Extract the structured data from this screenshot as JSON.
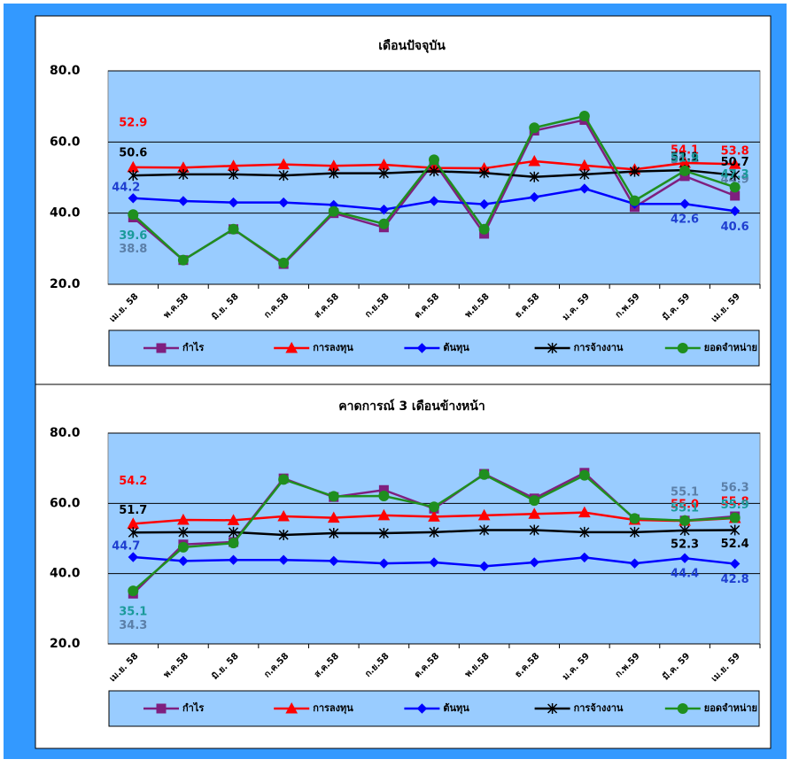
{
  "chart_data": [
    {
      "type": "line",
      "title": "เดือนปัจจุบัน",
      "categories": [
        "เม.ย. 58",
        "พ.ค.58",
        "มิ.ย. 58",
        "ก.ค.58",
        "ส.ค.58",
        "ก.ย.58",
        "ต.ค.58",
        "พ.ย.58",
        "ธ.ค.58",
        "ม.ค. 59",
        "ก.พ.59",
        "มี.ค. 59",
        "เม.ย. 59"
      ],
      "ylim": [
        20,
        80
      ],
      "yticks": [
        {
          "value": 20,
          "label": "20.0"
        },
        {
          "value": 40,
          "label": "40.0"
        },
        {
          "value": 60,
          "label": "60.0"
        },
        {
          "value": 80,
          "label": "80.0"
        }
      ],
      "grid": true,
      "plot_color": "#99ccff",
      "series": [
        {
          "name": "กำไร",
          "color": "#7f1f7f",
          "marker": "square",
          "label_color": "#5b7fa8",
          "values": [
            38.8,
            26.8,
            35.5,
            25.7,
            40.0,
            36.0,
            54.3,
            34.2,
            63.2,
            66.2,
            41.7,
            50.4,
            44.9
          ],
          "value_labels": [
            "38.8",
            null,
            null,
            null,
            null,
            null,
            null,
            null,
            null,
            null,
            null,
            "50.4",
            "44.9"
          ]
        },
        {
          "name": "การลงทุน",
          "color": "#ff0000",
          "marker": "triangle",
          "label_color": "#ff0000",
          "values": [
            52.9,
            52.8,
            53.3,
            53.7,
            53.3,
            53.6,
            52.7,
            52.6,
            54.6,
            53.4,
            52.3,
            54.1,
            53.8
          ],
          "value_labels": [
            "52.9",
            null,
            null,
            null,
            null,
            null,
            null,
            null,
            null,
            null,
            null,
            "54.1",
            "53.8"
          ]
        },
        {
          "name": "ต้นทุน",
          "color": "#0000ff",
          "marker": "diamond",
          "label_color": "#1f3fd0",
          "values": [
            44.2,
            43.4,
            43.0,
            43.0,
            42.3,
            41.0,
            43.4,
            42.5,
            44.5,
            46.9,
            42.6,
            42.6,
            40.6
          ],
          "value_labels": [
            "44.2",
            null,
            null,
            null,
            null,
            null,
            null,
            null,
            null,
            null,
            null,
            "42.6",
            "40.6"
          ]
        },
        {
          "name": "การจ้างงาน",
          "color": "#000000",
          "marker": "star",
          "label_color": "#000000",
          "values": [
            50.6,
            50.9,
            50.9,
            50.6,
            51.2,
            51.2,
            51.8,
            51.3,
            50.2,
            50.9,
            51.7,
            52.1,
            50.7
          ],
          "value_labels": [
            "50.6",
            null,
            null,
            null,
            null,
            null,
            null,
            null,
            null,
            null,
            null,
            "52.1",
            "50.7"
          ]
        },
        {
          "name": "ยอดจำหน่าย",
          "color": "#1f8f1f",
          "marker": "circle",
          "label_color": "#1a9a9a",
          "values": [
            39.6,
            26.8,
            35.5,
            26.0,
            40.5,
            37.0,
            55.0,
            35.5,
            64.0,
            67.3,
            43.5,
            51.9,
            47.3
          ],
          "value_labels": [
            "39.6",
            null,
            null,
            null,
            null,
            null,
            null,
            null,
            null,
            null,
            null,
            "51.9",
            "47.3"
          ]
        }
      ]
    },
    {
      "type": "line",
      "title": "คาดการณ์ 3 เดือนข้างหน้า",
      "categories": [
        "เม.ย. 58",
        "พ.ค.58",
        "มิ.ย. 58",
        "ก.ค.58",
        "ส.ค.58",
        "ก.ย.58",
        "ต.ค.58",
        "พ.ย.58",
        "ธ.ค.58",
        "ม.ค. 59",
        "ก.พ.59",
        "มี.ค. 59",
        "เม.ย. 59"
      ],
      "ylim": [
        20,
        80
      ],
      "yticks": [
        {
          "value": 20,
          "label": "20.0"
        },
        {
          "value": 40,
          "label": "40.0"
        },
        {
          "value": 60,
          "label": "60.0"
        },
        {
          "value": 80,
          "label": "80.0"
        }
      ],
      "grid": true,
      "plot_color": "#99ccff",
      "series": [
        {
          "name": "กำไร",
          "color": "#7f1f7f",
          "marker": "square",
          "label_color": "#5b7fa8",
          "values": [
            34.3,
            48.3,
            49.0,
            67.1,
            61.8,
            63.8,
            58.5,
            68.4,
            61.4,
            68.7,
            55.5,
            55.1,
            56.3
          ],
          "value_labels": [
            "34.3",
            null,
            null,
            null,
            null,
            null,
            null,
            null,
            null,
            null,
            null,
            "55.1",
            "56.3"
          ]
        },
        {
          "name": "การลงทุน",
          "color": "#ff0000",
          "marker": "triangle",
          "label_color": "#ff0000",
          "values": [
            54.2,
            55.3,
            55.2,
            56.3,
            55.9,
            56.6,
            56.2,
            56.6,
            57.0,
            57.4,
            55.3,
            55.0,
            55.8
          ],
          "value_labels": [
            "54.2",
            null,
            null,
            null,
            null,
            null,
            null,
            null,
            null,
            null,
            null,
            "55.0",
            "55.8"
          ]
        },
        {
          "name": "ต้นทุน",
          "color": "#0000ff",
          "marker": "diamond",
          "label_color": "#1f3fd0",
          "values": [
            44.7,
            43.6,
            43.9,
            43.9,
            43.6,
            42.9,
            43.2,
            42.1,
            43.2,
            44.6,
            42.9,
            44.4,
            42.8
          ],
          "value_labels": [
            "44.7",
            null,
            null,
            null,
            null,
            null,
            null,
            null,
            null,
            null,
            null,
            "44.4",
            "42.8"
          ]
        },
        {
          "name": "การจ้างงาน",
          "color": "#000000",
          "marker": "star",
          "label_color": "#000000",
          "values": [
            51.7,
            51.8,
            51.8,
            51.0,
            51.5,
            51.5,
            51.8,
            52.4,
            52.4,
            51.8,
            51.8,
            52.3,
            52.4
          ],
          "value_labels": [
            "51.7",
            null,
            null,
            null,
            null,
            null,
            null,
            null,
            null,
            null,
            null,
            "52.3",
            "52.4"
          ]
        },
        {
          "name": "ยอดจำหน่าย",
          "color": "#1f8f1f",
          "marker": "circle",
          "label_color": "#1a9a9a",
          "values": [
            35.1,
            47.5,
            48.7,
            66.8,
            62.0,
            62.1,
            59.0,
            68.2,
            60.8,
            68.0,
            55.7,
            55.1,
            55.9
          ],
          "value_labels": [
            "35.1",
            null,
            null,
            null,
            null,
            null,
            null,
            null,
            null,
            null,
            null,
            "55.1",
            "55.9"
          ]
        }
      ]
    }
  ]
}
